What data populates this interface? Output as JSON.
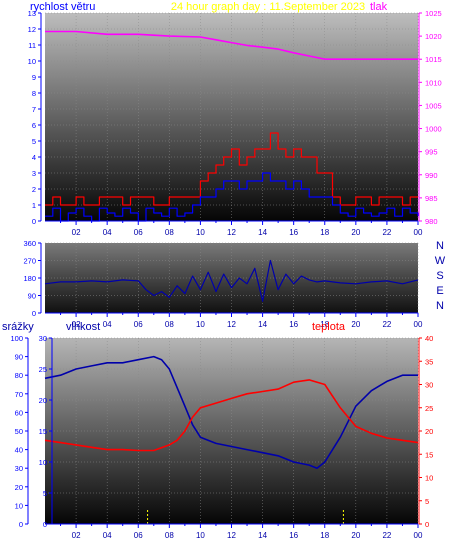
{
  "title": "24 hour graph day : 11.September 2023",
  "colors": {
    "wind": "#ff0000",
    "gust": "#0000ff",
    "pressure": "#ff00ff",
    "direction": "#0000aa",
    "humidity": "#0000aa",
    "temperature": "#ff0000",
    "rain": "#ffff00",
    "title": "#ffff00",
    "axis_left": "#0000ff",
    "axis_right": "#ff00ff",
    "axis_temp": "#ff0000",
    "compass": "#0000aa"
  },
  "chart_data": [
    {
      "type": "line",
      "left_label": "rychlost větru",
      "right_label": "tlak",
      "x_ticks": [
        "02",
        "04",
        "06",
        "08",
        "10",
        "12",
        "14",
        "16",
        "18",
        "20",
        "22",
        "00"
      ],
      "xlim": [
        0,
        24
      ],
      "ylim_left": [
        0,
        13
      ],
      "y_ticks_left": [
        "0",
        "1",
        "2",
        "3",
        "4",
        "5",
        "6",
        "7",
        "8",
        "9",
        "10",
        "11",
        "12",
        "13"
      ],
      "ylim_right": [
        980,
        1025
      ],
      "y_ticks_right": [
        "980",
        "985",
        "990",
        "995",
        "1000",
        "1005",
        "1010",
        "1015",
        "1020",
        "1025"
      ],
      "series": [
        {
          "axis": "right",
          "color_key": "pressure",
          "x": [
            0,
            2,
            4,
            6,
            8,
            10,
            11,
            12,
            13,
            14,
            15,
            16,
            17,
            18,
            19,
            20,
            22,
            24
          ],
          "y": [
            1021,
            1021,
            1020.4,
            1020.4,
            1020,
            1019.8,
            1019.2,
            1018.6,
            1018,
            1017.6,
            1017.2,
            1016.4,
            1015.7,
            1015,
            1015,
            1015,
            1015,
            1015
          ]
        },
        {
          "axis": "left",
          "color_key": "wind",
          "x": [
            0,
            0.5,
            1,
            1.5,
            2,
            2.5,
            3,
            3.5,
            4,
            4.5,
            5,
            5.5,
            6,
            6.5,
            7,
            7.5,
            8,
            8.5,
            9,
            9.5,
            10,
            10.5,
            11,
            11.5,
            12,
            12.5,
            13,
            13.5,
            14,
            14.5,
            15,
            15.5,
            16,
            16.5,
            17,
            17.5,
            18,
            18.5,
            19,
            19.5,
            20,
            20.5,
            21,
            21.5,
            22,
            22.5,
            23,
            23.5,
            24
          ],
          "y": [
            1,
            1.5,
            1,
            1,
            1.5,
            1,
            1,
            1.5,
            1.5,
            1.5,
            1,
            1.5,
            1.5,
            1.5,
            1,
            1,
            1.5,
            1.5,
            1.5,
            1.5,
            2.5,
            3,
            3.5,
            4,
            4.5,
            3.5,
            4,
            4.5,
            4.5,
            5.5,
            4.5,
            4,
            4.5,
            4,
            4,
            3,
            3,
            1.5,
            1,
            1,
            1.5,
            1.5,
            1,
            1.5,
            1.5,
            1.5,
            1,
            1.5,
            1.5
          ]
        },
        {
          "axis": "left",
          "color_key": "gust",
          "x": [
            0,
            0.5,
            1,
            1.5,
            2,
            2.5,
            3,
            3.5,
            4,
            4.5,
            5,
            5.5,
            6,
            6.5,
            7,
            7.5,
            8,
            8.5,
            9,
            9.5,
            10,
            10.5,
            11,
            11.5,
            12,
            12.5,
            13,
            13.5,
            14,
            14.5,
            15,
            15.5,
            16,
            16.5,
            17,
            17.5,
            18,
            18.5,
            19,
            19.5,
            20,
            20.5,
            21,
            21.5,
            22,
            22.5,
            23,
            23.5,
            24
          ],
          "y": [
            0.3,
            0.8,
            0,
            0.5,
            0.8,
            0.3,
            0,
            0.8,
            0.5,
            0.3,
            0.8,
            0.5,
            0,
            0.8,
            0.5,
            0.3,
            0.8,
            0.3,
            0.5,
            1,
            1.5,
            1.5,
            2,
            2.5,
            2.5,
            2,
            2.5,
            2.5,
            3,
            2.5,
            2.5,
            2,
            2.5,
            2,
            1.5,
            1.5,
            1.5,
            1,
            0.5,
            0.3,
            0.8,
            0.5,
            0.3,
            0.5,
            0.8,
            0.3,
            0.8,
            0.5,
            0.3
          ]
        }
      ]
    },
    {
      "type": "line",
      "right_labels": [
        "N",
        "W",
        "S",
        "E",
        "N"
      ],
      "x_ticks": [
        "02",
        "04",
        "06",
        "08",
        "10",
        "12",
        "14",
        "16",
        "18",
        "20",
        "22",
        "00"
      ],
      "xlim": [
        0,
        24
      ],
      "ylim": [
        0,
        360
      ],
      "y_ticks": [
        "0",
        "90",
        "180",
        "270",
        "360"
      ],
      "series": [
        {
          "color_key": "direction",
          "x": [
            0,
            1,
            2,
            3,
            4,
            5,
            6,
            6.5,
            7,
            7.5,
            8,
            8.5,
            9,
            9.5,
            10,
            10.5,
            11,
            11.5,
            12,
            12.5,
            13,
            13.5,
            14,
            14.5,
            15,
            15.5,
            16,
            16.5,
            17,
            17.5,
            18,
            19,
            20,
            21,
            22,
            23,
            24
          ],
          "y": [
            150,
            160,
            160,
            165,
            160,
            170,
            165,
            120,
            90,
            110,
            80,
            140,
            100,
            190,
            120,
            210,
            110,
            200,
            130,
            180,
            150,
            230,
            60,
            270,
            120,
            200,
            150,
            190,
            170,
            160,
            165,
            155,
            150,
            160,
            165,
            150,
            170
          ]
        }
      ]
    },
    {
      "type": "line",
      "rain_label": "srážky",
      "left_label": "vlhkost",
      "right_label": "teplota",
      "x_ticks": [
        "02",
        "04",
        "06",
        "08",
        "10",
        "12",
        "14",
        "16",
        "18",
        "20",
        "22",
        "00"
      ],
      "xlim": [
        0,
        24
      ],
      "rain_ticks": [
        "0",
        "10",
        "20",
        "30",
        "40",
        "50",
        "60",
        "70",
        "80",
        "90",
        "100"
      ],
      "ylim_left": [
        0,
        30
      ],
      "y_ticks_left": [
        "0",
        "5",
        "10",
        "15",
        "20",
        "25",
        "30"
      ],
      "ylim_right": [
        0,
        40
      ],
      "y_ticks_right": [
        "0",
        "5",
        "10",
        "15",
        "20",
        "25",
        "30",
        "35",
        "40"
      ],
      "series": [
        {
          "axis": "left",
          "color_key": "humidity",
          "x": [
            0,
            1,
            2,
            3,
            4,
            5,
            6,
            7,
            7.5,
            8,
            8.5,
            9,
            9.5,
            10,
            11,
            12,
            13,
            14,
            15,
            16,
            17,
            17.5,
            18,
            19,
            20,
            21,
            22,
            23,
            24
          ],
          "y": [
            23.5,
            24,
            25,
            25.5,
            26,
            26,
            26.5,
            27,
            26.5,
            25,
            22,
            19,
            16,
            14,
            13,
            12.5,
            12,
            11.5,
            11,
            10,
            9.5,
            9,
            10,
            14,
            19,
            21.5,
            23,
            24,
            24
          ]
        },
        {
          "axis": "right",
          "color_key": "temperature",
          "x": [
            0,
            1,
            2,
            3,
            4,
            5,
            6,
            7,
            8,
            8.5,
            9,
            9.5,
            10,
            11,
            12,
            13,
            14,
            15,
            16,
            17,
            18,
            19,
            20,
            21,
            22,
            23,
            24
          ],
          "y": [
            18,
            17.5,
            17,
            16.5,
            16,
            16,
            15.8,
            15.8,
            17,
            18,
            20,
            23,
            25,
            26,
            27,
            28,
            28.5,
            29,
            30.5,
            31,
            30,
            25,
            21,
            19.5,
            18.5,
            18,
            17.5
          ]
        }
      ],
      "rain_marks_x": [
        6.6,
        19.2
      ]
    }
  ]
}
